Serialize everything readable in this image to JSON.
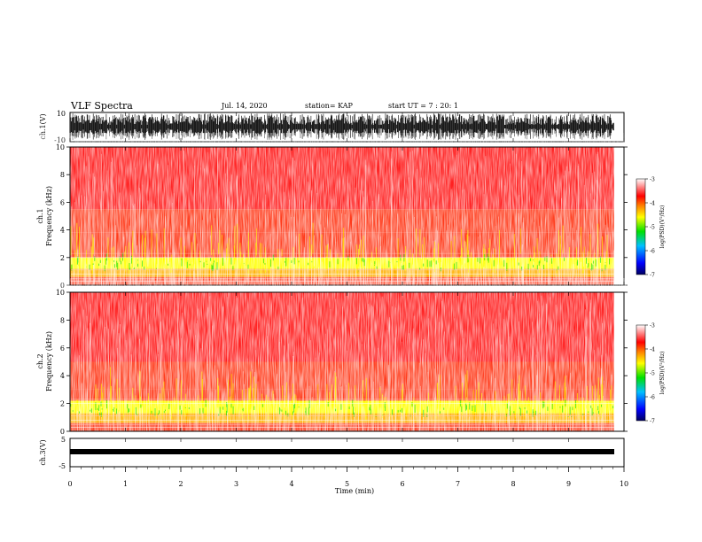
{
  "header": {
    "title": "VLF Spectra",
    "date": "Jul. 14, 2020",
    "station": "station= KAP",
    "start": "start UT = 7 : 20: 1"
  },
  "chart_data": [
    {
      "type": "line",
      "name": "ch1-waveform",
      "ylabel": "ch.1(V)",
      "ylim": [
        -10,
        10
      ],
      "y_ticks": [
        "10",
        "-10"
      ],
      "xlim": [
        0,
        10
      ],
      "note_values": "dense waveform, roughly -8 to 8 V"
    },
    {
      "type": "heatmap",
      "name": "ch1-spectrogram",
      "ylabel": "ch.1\nFrequency (kHz)",
      "ylim": [
        0,
        10
      ],
      "y_ticks": [
        "0",
        "2",
        "4",
        "6",
        "8",
        "10"
      ],
      "xlim": [
        0,
        10
      ],
      "data_end_min": 9.82,
      "bands": [
        {
          "f_lo": 0.0,
          "f_hi": 0.6,
          "level": -3.6
        },
        {
          "f_lo": 0.6,
          "f_hi": 1.2,
          "level": -4.5
        },
        {
          "f_lo": 1.2,
          "f_hi": 2.0,
          "level": -4.8
        },
        {
          "f_lo": 2.0,
          "f_hi": 3.8,
          "level": -4.2
        },
        {
          "f_lo": 3.8,
          "f_hi": 5.5,
          "level": -3.9
        },
        {
          "f_lo": 5.5,
          "f_hi": 10.0,
          "level": -3.4
        }
      ]
    },
    {
      "type": "heatmap",
      "name": "ch2-spectrogram",
      "ylabel": "ch.2\nFrequency (kHz)",
      "ylim": [
        0,
        10
      ],
      "y_ticks": [
        "0",
        "2",
        "4",
        "6",
        "8",
        "10"
      ],
      "xlim": [
        0,
        10
      ],
      "data_end_min": 9.82,
      "bands": [
        {
          "f_lo": 0.0,
          "f_hi": 0.6,
          "level": -3.6
        },
        {
          "f_lo": 0.6,
          "f_hi": 1.3,
          "level": -4.5
        },
        {
          "f_lo": 1.3,
          "f_hi": 2.2,
          "level": -4.9
        },
        {
          "f_lo": 2.2,
          "f_hi": 3.0,
          "level": -4.2
        },
        {
          "f_lo": 3.0,
          "f_hi": 5.0,
          "level": -3.8
        },
        {
          "f_lo": 5.0,
          "f_hi": 10.0,
          "level": -3.4
        }
      ]
    },
    {
      "type": "line",
      "name": "ch3-waveform",
      "ylabel": "ch.3(V)",
      "ylim": [
        -5,
        5
      ],
      "y_ticks": [
        "5",
        "-5"
      ],
      "xlim": [
        0,
        10
      ],
      "note_values": "flat band near -1 V"
    }
  ],
  "xaxis": {
    "label": "Time (min)",
    "ticks": [
      "0",
      "1",
      "2",
      "3",
      "4",
      "5",
      "6",
      "7",
      "8",
      "9",
      "10"
    ]
  },
  "colorbars": [
    {
      "name": "colorbar-ch1",
      "label": "log(PSD)(V²/Hz)",
      "range": [
        -7,
        -3
      ],
      "ticks": [
        "-3",
        "-4",
        "-5",
        "-6",
        "-7"
      ]
    },
    {
      "name": "colorbar-ch2",
      "label": "log(PSD)(V²/Hz)",
      "range": [
        -7,
        -3
      ],
      "ticks": [
        "-3",
        "-4",
        "-5",
        "-6",
        "-7"
      ]
    }
  ],
  "colors": {
    "high": "#ffffff",
    "mid_high": "#ff2020",
    "mid": "#ffff00",
    "mid_low": "#00dd00",
    "low_mid": "#00b0ff",
    "low": "#0000a0",
    "waveform": "#000000"
  }
}
